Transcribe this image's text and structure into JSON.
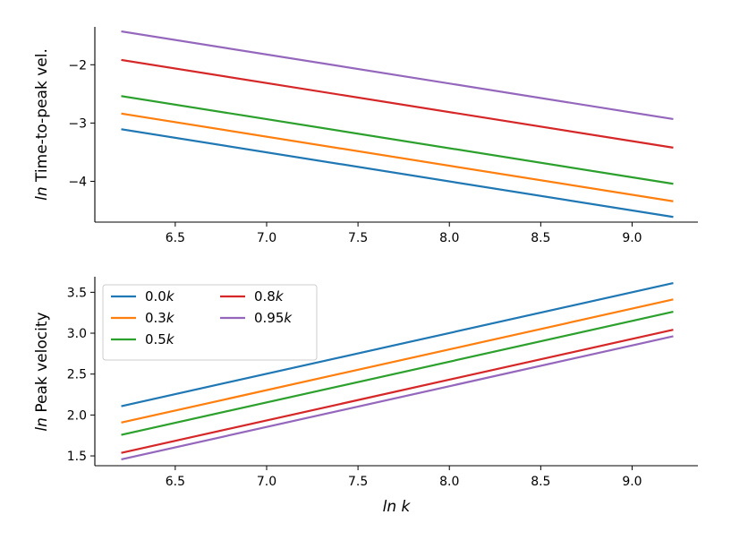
{
  "colors": {
    "series": [
      "#1f77b4",
      "#ff7f0e",
      "#2ca02c",
      "#d62728",
      "#9467bd"
    ],
    "spine": "#000000"
  },
  "chart_data": [
    {
      "type": "line",
      "xlabel": "",
      "ylabel": {
        "italic": "ln",
        "text": " Time-to-peak vel."
      },
      "xlim": [
        6.06,
        9.36
      ],
      "ylim": [
        -4.7,
        -1.35
      ],
      "xticks": [
        6.5,
        7.0,
        7.5,
        8.0,
        8.5,
        9.0
      ],
      "xtick_labels": [
        "6.5",
        "7.0",
        "7.5",
        "8.0",
        "8.5",
        "9.0"
      ],
      "yticks": [
        -2,
        -3,
        -4
      ],
      "ytick_labels": [
        "−2",
        "−3",
        "−4"
      ],
      "series": [
        {
          "name": "0.0k",
          "x": [
            6.21,
            9.22
          ],
          "y": [
            -3.11,
            -4.61
          ]
        },
        {
          "name": "0.3k",
          "x": [
            6.21,
            9.22
          ],
          "y": [
            -2.84,
            -4.34
          ]
        },
        {
          "name": "0.5k",
          "x": [
            6.21,
            9.22
          ],
          "y": [
            -2.54,
            -4.04
          ]
        },
        {
          "name": "0.8k",
          "x": [
            6.21,
            9.22
          ],
          "y": [
            -1.92,
            -3.42
          ]
        },
        {
          "name": "0.95k",
          "x": [
            6.21,
            9.22
          ],
          "y": [
            -1.43,
            -2.93
          ]
        }
      ]
    },
    {
      "type": "line",
      "xlabel": {
        "italic": "ln k"
      },
      "ylabel": {
        "italic": "ln",
        "text": " Peak velocity"
      },
      "xlim": [
        6.06,
        9.36
      ],
      "ylim": [
        1.38,
        3.69
      ],
      "xticks": [
        6.5,
        7.0,
        7.5,
        8.0,
        8.5,
        9.0
      ],
      "xtick_labels": [
        "6.5",
        "7.0",
        "7.5",
        "8.0",
        "8.5",
        "9.0"
      ],
      "yticks": [
        1.5,
        2.0,
        2.5,
        3.0,
        3.5
      ],
      "ytick_labels": [
        "1.5",
        "2.0",
        "2.5",
        "3.0",
        "3.5"
      ],
      "legend": {
        "position": "top-left",
        "columns": 2,
        "entries": [
          {
            "num": "0.0",
            "var": "k"
          },
          {
            "num": "0.3",
            "var": "k"
          },
          {
            "num": "0.5",
            "var": "k"
          },
          {
            "num": "0.8",
            "var": "k"
          },
          {
            "num": "0.95",
            "var": "k"
          }
        ]
      },
      "series": [
        {
          "name": "0.0k",
          "x": [
            6.21,
            9.22
          ],
          "y": [
            2.11,
            3.61
          ]
        },
        {
          "name": "0.3k",
          "x": [
            6.21,
            9.22
          ],
          "y": [
            1.91,
            3.41
          ]
        },
        {
          "name": "0.5k",
          "x": [
            6.21,
            9.22
          ],
          "y": [
            1.76,
            3.26
          ]
        },
        {
          "name": "0.8k",
          "x": [
            6.21,
            9.22
          ],
          "y": [
            1.54,
            3.04
          ]
        },
        {
          "name": "0.95k",
          "x": [
            6.21,
            9.22
          ],
          "y": [
            1.46,
            2.96
          ]
        }
      ]
    }
  ]
}
